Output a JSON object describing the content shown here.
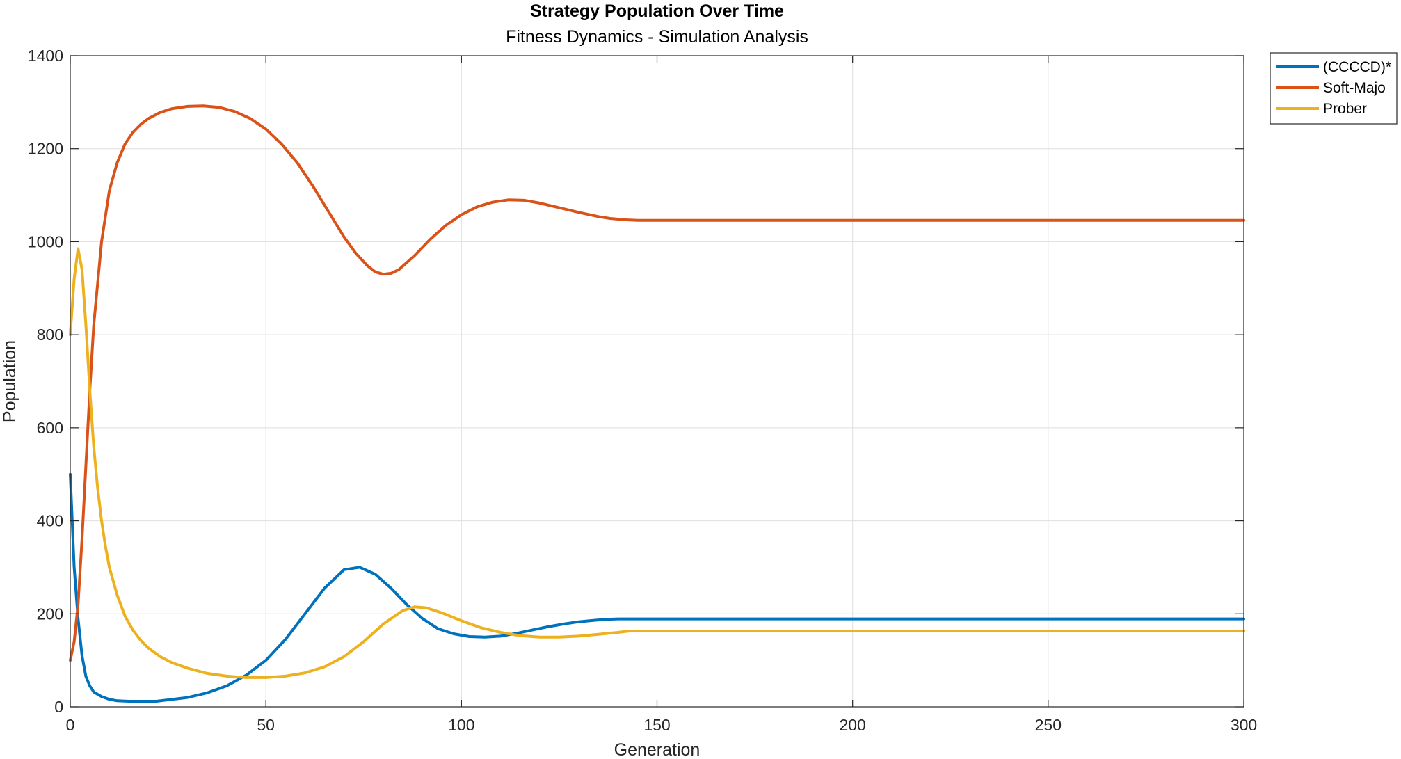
{
  "chart_data": {
    "type": "line",
    "title": "Strategy Population Over Time",
    "subtitle": "Fitness Dynamics - Simulation Analysis",
    "xlabel": "Generation",
    "ylabel": "Population",
    "xlim": [
      0,
      300
    ],
    "ylim": [
      0,
      1400
    ],
    "xticks": [
      0,
      50,
      100,
      150,
      200,
      250,
      300
    ],
    "yticks": [
      0,
      200,
      400,
      600,
      800,
      1000,
      1200,
      1400
    ],
    "grid": true,
    "legend_position": "outside-top-right",
    "series": [
      {
        "name": "(CCCCD)*",
        "color": "#0072BD",
        "x": [
          0,
          1,
          2,
          3,
          4,
          5,
          6,
          8,
          10,
          12,
          15,
          18,
          22,
          26,
          30,
          35,
          40,
          45,
          50,
          55,
          60,
          65,
          70,
          74,
          78,
          82,
          86,
          90,
          94,
          98,
          102,
          106,
          110,
          114,
          118,
          122,
          126,
          130,
          134,
          137,
          140,
          145,
          150,
          200,
          250,
          300
        ],
        "y": [
          500,
          300,
          190,
          110,
          65,
          45,
          32,
          22,
          16,
          13,
          12,
          12,
          12,
          16,
          20,
          30,
          45,
          68,
          100,
          145,
          200,
          255,
          295,
          300,
          285,
          255,
          220,
          190,
          168,
          157,
          151,
          150,
          152,
          158,
          165,
          172,
          178,
          183,
          186,
          188,
          189,
          189,
          189,
          189,
          189,
          189
        ]
      },
      {
        "name": "Soft-Majo",
        "color": "#D95319",
        "x": [
          0,
          1,
          2,
          3,
          4,
          5,
          6,
          8,
          10,
          12,
          14,
          16,
          18,
          20,
          23,
          26,
          30,
          34,
          38,
          42,
          46,
          50,
          54,
          58,
          62,
          66,
          70,
          73,
          76,
          78,
          80,
          82,
          84,
          86,
          88,
          92,
          96,
          100,
          104,
          108,
          112,
          116,
          120,
          125,
          130,
          135,
          138,
          142,
          145,
          150,
          200,
          250,
          300
        ],
        "y": [
          100,
          140,
          220,
          360,
          520,
          680,
          820,
          1000,
          1110,
          1170,
          1210,
          1235,
          1252,
          1265,
          1278,
          1286,
          1291,
          1292,
          1289,
          1280,
          1265,
          1242,
          1210,
          1170,
          1120,
          1065,
          1010,
          975,
          948,
          935,
          930,
          932,
          940,
          955,
          970,
          1005,
          1035,
          1058,
          1075,
          1085,
          1090,
          1089,
          1083,
          1073,
          1063,
          1054,
          1050,
          1047,
          1046,
          1046,
          1046,
          1046,
          1046
        ]
      },
      {
        "name": "Prober",
        "color": "#EDB120",
        "x": [
          0,
          1,
          2,
          3,
          4,
          5,
          6,
          7,
          8,
          9,
          10,
          12,
          14,
          16,
          18,
          20,
          23,
          26,
          30,
          35,
          40,
          45,
          50,
          55,
          60,
          65,
          70,
          75,
          80,
          85,
          88,
          91,
          95,
          100,
          105,
          110,
          115,
          120,
          125,
          130,
          135,
          140,
          143,
          150,
          200,
          250,
          300
        ],
        "y": [
          800,
          920,
          985,
          940,
          820,
          680,
          560,
          470,
          400,
          345,
          300,
          240,
          195,
          165,
          143,
          126,
          108,
          95,
          83,
          72,
          66,
          63,
          63,
          66,
          73,
          86,
          108,
          140,
          178,
          207,
          215,
          213,
          202,
          185,
          170,
          160,
          153,
          150,
          150,
          152,
          156,
          160,
          163,
          163,
          163,
          163,
          163
        ]
      }
    ]
  }
}
